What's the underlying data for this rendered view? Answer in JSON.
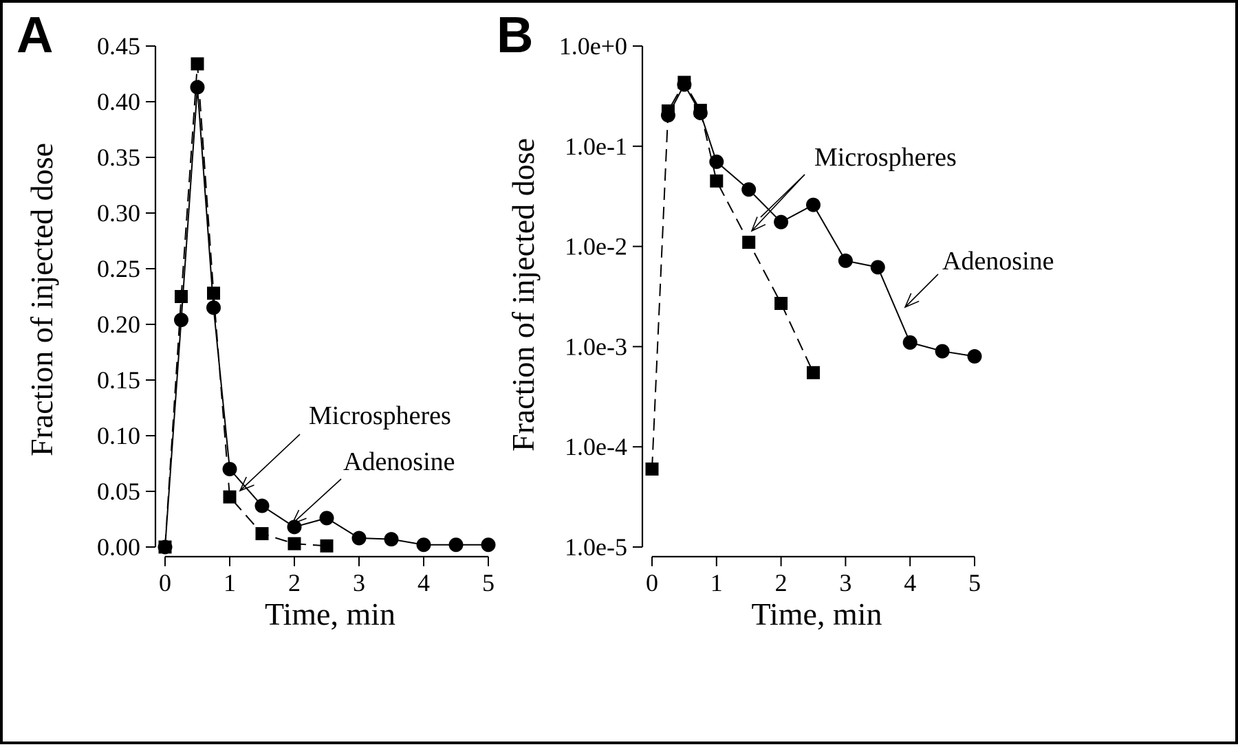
{
  "chart_data": [
    {
      "panel": "A",
      "type": "line",
      "xlabel": "Time, min",
      "ylabel": "Fraction of injected dose",
      "xlim": [
        0,
        5
      ],
      "ylim": [
        0,
        0.45
      ],
      "y_scale": "linear",
      "xticks": [
        "0",
        "1",
        "2",
        "3",
        "4",
        "5"
      ],
      "yticks": [
        "0.00",
        "0.05",
        "0.10",
        "0.15",
        "0.20",
        "0.25",
        "0.30",
        "0.35",
        "0.40",
        "0.45"
      ],
      "series": [
        {
          "name": "Adenosine",
          "marker": "circle",
          "line": "solid",
          "x": [
            0,
            0.25,
            0.5,
            0.75,
            1.0,
            1.5,
            2.0,
            2.5,
            3.0,
            3.5,
            4.0,
            4.5,
            5.0
          ],
          "y": [
            0.0,
            0.204,
            0.413,
            0.215,
            0.07,
            0.037,
            0.018,
            0.026,
            0.008,
            0.007,
            0.002,
            0.002,
            0.002
          ]
        },
        {
          "name": "Microspheres",
          "marker": "square",
          "line": "dashed",
          "x": [
            0,
            0.25,
            0.5,
            0.75,
            1.0,
            1.5,
            2.0,
            2.5
          ],
          "y": [
            0.0,
            0.225,
            0.434,
            0.228,
            0.045,
            0.012,
            0.003,
            0.001
          ]
        }
      ],
      "annotations": [
        "Microspheres",
        "Adenosine"
      ]
    },
    {
      "panel": "B",
      "type": "line",
      "xlabel": "Time, min",
      "ylabel": "Fraction of injected dose",
      "xlim": [
        0,
        5
      ],
      "ylim": [
        1e-05,
        1
      ],
      "y_scale": "log",
      "xticks": [
        "0",
        "1",
        "2",
        "3",
        "4",
        "5"
      ],
      "yticks": [
        "1.0e-5",
        "1.0e-4",
        "1.0e-3",
        "1.0e-2",
        "1.0e-1",
        "1.0e+0"
      ],
      "series": [
        {
          "name": "Adenosine",
          "marker": "circle",
          "line": "solid",
          "x": [
            0.25,
            0.5,
            0.75,
            1.0,
            1.5,
            2.0,
            2.5,
            3.0,
            3.5,
            4.0,
            4.5,
            5.0
          ],
          "y": [
            0.204,
            0.413,
            0.215,
            0.07,
            0.037,
            0.0175,
            0.026,
            0.0072,
            0.0062,
            0.0011,
            0.0009,
            0.0008
          ]
        },
        {
          "name": "Microspheres",
          "marker": "square",
          "line": "dashed",
          "x": [
            0,
            0.25,
            0.5,
            0.75,
            1.0,
            1.5,
            2.0,
            2.5
          ],
          "y": [
            6e-05,
            0.225,
            0.434,
            0.228,
            0.045,
            0.011,
            0.0027,
            0.00055
          ]
        }
      ],
      "annotations": [
        "Microspheres",
        "Adenosine"
      ]
    }
  ]
}
